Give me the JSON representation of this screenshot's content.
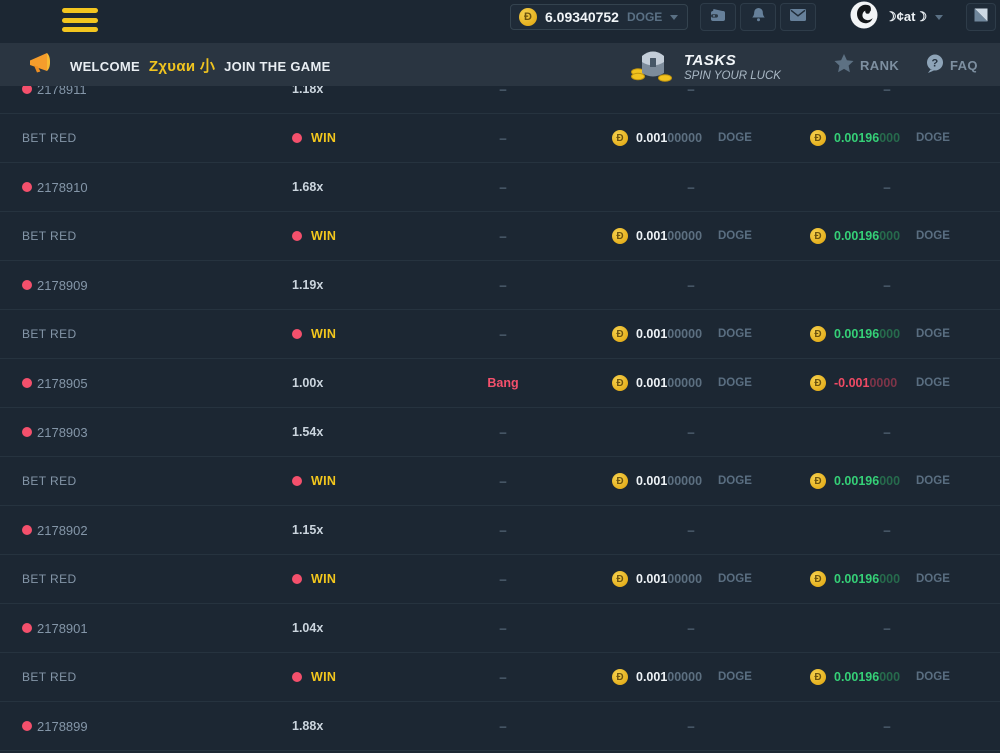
{
  "topbar": {
    "balance": {
      "amount": "6.09340752",
      "currency": "DOGE"
    },
    "username": "☽¢at☽",
    "icons": [
      "menu-icon",
      "doge-coin-icon",
      "wallet-icon",
      "bell-icon",
      "mail-icon",
      "avatar",
      "chat-toggle-icon"
    ]
  },
  "banner": {
    "welcome_prefix": "WELCOME",
    "welcome_name": "Ζχυαи 小",
    "welcome_suffix": "JOIN THE GAME",
    "tasks_title": "TASKS",
    "tasks_subtitle": "SPIN YOUR LUCK",
    "rank_label": "RANK",
    "faq_label": "FAQ",
    "icons": [
      "megaphone-icon",
      "treasure-chest-icon",
      "star-icon",
      "question-icon"
    ]
  },
  "colors": {
    "background": "#1c2733",
    "banner_background": "#2a3541",
    "accent_yellow": "#f2c51f",
    "red_pink": "#f4506c",
    "green": "#35d077",
    "coin_gold": "#e5b01e"
  },
  "table": {
    "dash": "–",
    "rows": [
      {
        "kind": "round",
        "id": "2178911",
        "multiplier": "1.18x",
        "result": "–",
        "bet": "–",
        "profit": "–"
      },
      {
        "kind": "bet",
        "label": "BET RED",
        "outcome": "WIN",
        "result": "–",
        "bet": {
          "main": "0.001",
          "zeros": "00000",
          "currency": "DOGE",
          "tone": "bet"
        },
        "profit": {
          "main": "0.00196",
          "zeros": "000",
          "currency": "DOGE",
          "tone": "win"
        }
      },
      {
        "kind": "round",
        "id": "2178910",
        "multiplier": "1.68x",
        "result": "–",
        "bet": "–",
        "profit": "–"
      },
      {
        "kind": "bet",
        "label": "BET RED",
        "outcome": "WIN",
        "result": "–",
        "bet": {
          "main": "0.001",
          "zeros": "00000",
          "currency": "DOGE",
          "tone": "bet"
        },
        "profit": {
          "main": "0.00196",
          "zeros": "000",
          "currency": "DOGE",
          "tone": "win"
        }
      },
      {
        "kind": "round",
        "id": "2178909",
        "multiplier": "1.19x",
        "result": "–",
        "bet": "–",
        "profit": "–"
      },
      {
        "kind": "bet",
        "label": "BET RED",
        "outcome": "WIN",
        "result": "–",
        "bet": {
          "main": "0.001",
          "zeros": "00000",
          "currency": "DOGE",
          "tone": "bet"
        },
        "profit": {
          "main": "0.00196",
          "zeros": "000",
          "currency": "DOGE",
          "tone": "win"
        }
      },
      {
        "kind": "round",
        "id": "2178905",
        "multiplier": "1.00x",
        "result": "Bang",
        "bet": {
          "main": "0.001",
          "zeros": "00000",
          "currency": "DOGE",
          "tone": "bet"
        },
        "profit": {
          "main": "-0.001",
          "zeros": "0000",
          "currency": "DOGE",
          "tone": "loss"
        }
      },
      {
        "kind": "round",
        "id": "2178903",
        "multiplier": "1.54x",
        "result": "–",
        "bet": "–",
        "profit": "–"
      },
      {
        "kind": "bet",
        "label": "BET RED",
        "outcome": "WIN",
        "result": "–",
        "bet": {
          "main": "0.001",
          "zeros": "00000",
          "currency": "DOGE",
          "tone": "bet"
        },
        "profit": {
          "main": "0.00196",
          "zeros": "000",
          "currency": "DOGE",
          "tone": "win"
        }
      },
      {
        "kind": "round",
        "id": "2178902",
        "multiplier": "1.15x",
        "result": "–",
        "bet": "–",
        "profit": "–"
      },
      {
        "kind": "bet",
        "label": "BET RED",
        "outcome": "WIN",
        "result": "–",
        "bet": {
          "main": "0.001",
          "zeros": "00000",
          "currency": "DOGE",
          "tone": "bet"
        },
        "profit": {
          "main": "0.00196",
          "zeros": "000",
          "currency": "DOGE",
          "tone": "win"
        }
      },
      {
        "kind": "round",
        "id": "2178901",
        "multiplier": "1.04x",
        "result": "–",
        "bet": "–",
        "profit": "–"
      },
      {
        "kind": "bet",
        "label": "BET RED",
        "outcome": "WIN",
        "result": "–",
        "bet": {
          "main": "0.001",
          "zeros": "00000",
          "currency": "DOGE",
          "tone": "bet"
        },
        "profit": {
          "main": "0.00196",
          "zeros": "000",
          "currency": "DOGE",
          "tone": "win"
        }
      },
      {
        "kind": "round",
        "id": "2178899",
        "multiplier": "1.88x",
        "result": "–",
        "bet": "–",
        "profit": "–"
      }
    ]
  }
}
